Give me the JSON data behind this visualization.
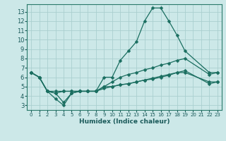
{
  "xlabel": "Humidex (Indice chaleur)",
  "bg_color": "#cce8e8",
  "grid_color": "#aacfcf",
  "line_color": "#1a6e60",
  "xlim": [
    -0.5,
    23.5
  ],
  "ylim": [
    2.5,
    13.8
  ],
  "yticks": [
    3,
    4,
    5,
    6,
    7,
    8,
    9,
    10,
    11,
    12,
    13
  ],
  "xticks": [
    0,
    1,
    2,
    3,
    4,
    5,
    6,
    7,
    8,
    9,
    10,
    11,
    12,
    13,
    14,
    15,
    16,
    17,
    18,
    19,
    20,
    21,
    22,
    23
  ],
  "series": [
    {
      "x": [
        0,
        1,
        2,
        3,
        4,
        5,
        6,
        7,
        8,
        9,
        10,
        11,
        12,
        13,
        14,
        15,
        16,
        17,
        18,
        19,
        22,
        23
      ],
      "y": [
        6.5,
        6.0,
        4.5,
        3.7,
        3.0,
        4.3,
        4.5,
        4.5,
        4.5,
        6.0,
        6.0,
        7.8,
        8.8,
        9.8,
        12.0,
        13.4,
        13.4,
        12.0,
        10.5,
        8.8,
        6.5,
        6.5
      ]
    },
    {
      "x": [
        0,
        1,
        2,
        3,
        4,
        5,
        6,
        7,
        8,
        9,
        10,
        11,
        12,
        13,
        14,
        15,
        16,
        17,
        18,
        19,
        22,
        23
      ],
      "y": [
        6.5,
        6.0,
        4.5,
        4.5,
        4.5,
        4.5,
        4.5,
        4.5,
        4.5,
        5.0,
        5.5,
        6.0,
        6.3,
        6.5,
        6.8,
        7.0,
        7.3,
        7.5,
        7.8,
        8.0,
        6.3,
        6.5
      ]
    },
    {
      "x": [
        0,
        1,
        2,
        3,
        4,
        5,
        6,
        7,
        8,
        9,
        10,
        11,
        12,
        13,
        14,
        15,
        16,
        17,
        18,
        19,
        22,
        23
      ],
      "y": [
        6.5,
        6.0,
        4.5,
        4.3,
        3.3,
        4.3,
        4.5,
        4.5,
        4.5,
        4.8,
        5.0,
        5.2,
        5.3,
        5.5,
        5.7,
        5.8,
        6.0,
        6.2,
        6.5,
        6.5,
        5.5,
        5.5
      ]
    },
    {
      "x": [
        0,
        1,
        2,
        3,
        4,
        5,
        6,
        7,
        8,
        9,
        10,
        11,
        12,
        13,
        14,
        15,
        16,
        17,
        18,
        19,
        22,
        23
      ],
      "y": [
        6.5,
        6.0,
        4.5,
        4.3,
        4.5,
        4.5,
        4.5,
        4.5,
        4.5,
        5.0,
        5.0,
        5.2,
        5.3,
        5.5,
        5.7,
        5.9,
        6.1,
        6.3,
        6.5,
        6.7,
        5.3,
        5.5
      ]
    }
  ],
  "markersize": 2.5,
  "linewidth": 0.9
}
